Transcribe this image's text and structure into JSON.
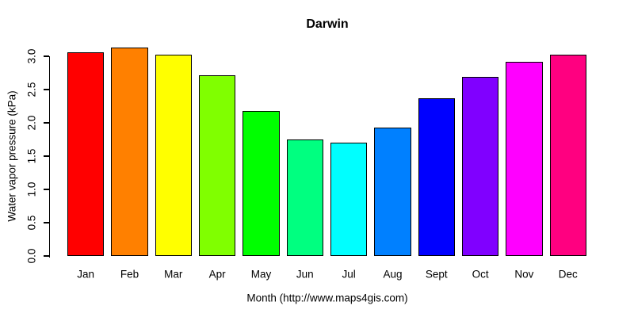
{
  "chart_data": {
    "type": "bar",
    "title": "Darwin",
    "xlabel": "Month (http://www.maps4gis.com)",
    "ylabel": "Water vapor pressure (kPa)",
    "categories": [
      "Jan",
      "Feb",
      "Mar",
      "Apr",
      "May",
      "Jun",
      "Jul",
      "Aug",
      "Sept",
      "Oct",
      "Nov",
      "Dec"
    ],
    "values": [
      3.06,
      3.13,
      3.02,
      2.71,
      2.18,
      1.75,
      1.7,
      1.93,
      2.37,
      2.69,
      2.92,
      3.02
    ],
    "bar_colors": [
      "#FF0000",
      "#FF8000",
      "#FFFF00",
      "#80FF00",
      "#00FF00",
      "#00FF80",
      "#00FFFF",
      "#0080FF",
      "#0000FF",
      "#8000FF",
      "#FF00FF",
      "#FF0080"
    ],
    "bar_border_color": "#000000",
    "yticks": [
      "0.0",
      "0.5",
      "1.0",
      "1.5",
      "2.0",
      "2.5",
      "3.0"
    ],
    "ytick_values": [
      0.0,
      0.5,
      1.0,
      1.5,
      2.0,
      2.5,
      3.0
    ],
    "ylim": [
      0.0,
      3.2
    ],
    "grid": false,
    "legend": null,
    "background_color": "#FFFFFF",
    "text_color": "#000000"
  }
}
